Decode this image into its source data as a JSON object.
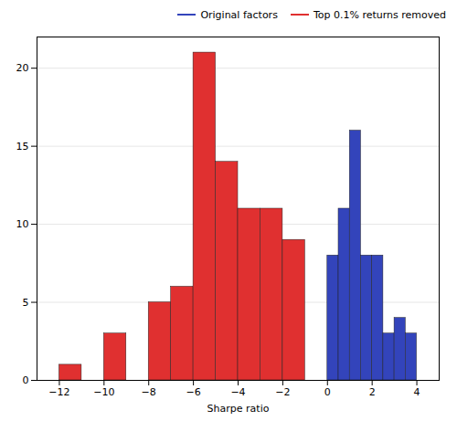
{
  "chart_data": {
    "type": "bar",
    "xlabel": "Sharpe ratio",
    "xlim": [
      -13,
      5
    ],
    "xticks": [
      -12,
      -10,
      -8,
      -6,
      -4,
      -2,
      0,
      2,
      4
    ],
    "ylim": [
      0,
      22
    ],
    "yticks": [
      0,
      5,
      10,
      15,
      20
    ],
    "grid": true,
    "legend": "upper right",
    "series": [
      {
        "name": "Original factors",
        "color": "#3344bb",
        "x": [
          0.25,
          0.75,
          1.25,
          1.75,
          2.25,
          2.75,
          3.25,
          3.75
        ],
        "width": 0.5,
        "values": [
          8,
          11,
          16,
          8,
          8,
          3,
          4,
          3
        ]
      },
      {
        "name": "Top 0.1% returns removed",
        "color": "#e03030",
        "x": [
          -11.5,
          -9.5,
          -7.5,
          -6.5,
          -5.5,
          -4.5,
          -3.5,
          -2.5,
          -1.5
        ],
        "width": 1.0,
        "values": [
          1,
          3,
          5,
          6,
          21,
          14,
          11,
          11,
          9
        ]
      }
    ]
  }
}
